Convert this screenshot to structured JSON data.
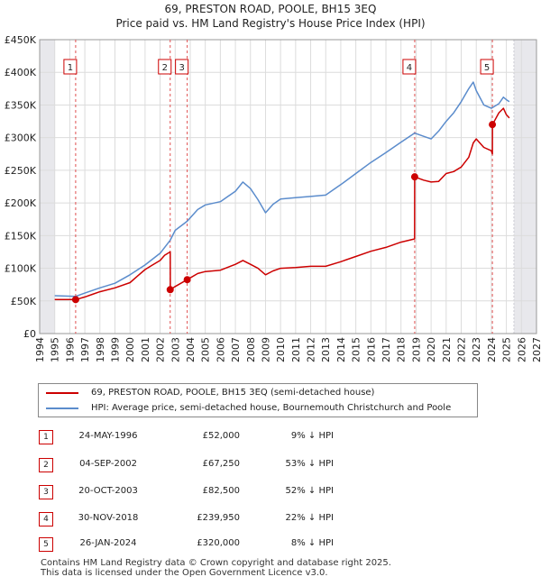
{
  "chart_data": {
    "type": "line",
    "title": "69, PRESTON ROAD, POOLE, BH15 3EQ",
    "subtitle": "Price paid vs. HM Land Registry's House Price Index (HPI)",
    "xlim": [
      1994,
      2027
    ],
    "ylim": [
      0,
      450000
    ],
    "y_ticks": [
      0,
      50000,
      100000,
      150000,
      200000,
      250000,
      300000,
      350000,
      400000,
      450000
    ],
    "y_tick_labels": [
      "£0",
      "£50K",
      "£100K",
      "£150K",
      "£200K",
      "£250K",
      "£300K",
      "£350K",
      "£400K",
      "£450K"
    ],
    "x_ticks": [
      1994,
      1995,
      1996,
      1997,
      1998,
      1999,
      2000,
      2001,
      2002,
      2003,
      2004,
      2005,
      2006,
      2007,
      2008,
      2009,
      2010,
      2011,
      2012,
      2013,
      2014,
      2015,
      2016,
      2017,
      2018,
      2019,
      2020,
      2021,
      2022,
      2023,
      2024,
      2025,
      2026,
      2027
    ],
    "grid": true,
    "data_range_x": [
      1995,
      2025.5
    ],
    "legend_placement": "below",
    "series": [
      {
        "name": "69, PRESTON ROAD, POOLE, BH15 3EQ (semi-detached house)",
        "color": "#cc0000",
        "x": [
          1995.0,
          1996.4,
          1997.0,
          1997.5,
          1998.0,
          1999.0,
          2000.0,
          2000.5,
          2001.0,
          2001.5,
          2002.0,
          2002.3,
          2002.67,
          2002.68,
          2003.0,
          2003.8,
          2004.5,
          2005.0,
          2006.0,
          2007.0,
          2007.5,
          2008.0,
          2008.5,
          2009.0,
          2009.5,
          2010.0,
          2011.0,
          2012.0,
          2013.0,
          2014.0,
          2015.0,
          2016.0,
          2017.0,
          2018.0,
          2018.9,
          2018.91,
          2019.5,
          2020.0,
          2020.5,
          2021.0,
          2021.5,
          2022.0,
          2022.5,
          2022.8,
          2023.0,
          2023.5,
          2024.0,
          2024.07,
          2024.08,
          2024.5,
          2024.8,
          2025.0,
          2025.2
        ],
        "y": [
          52000,
          52000,
          56000,
          60000,
          64000,
          70000,
          78000,
          88000,
          98000,
          105000,
          112000,
          120000,
          125000,
          67250,
          72000,
          82500,
          92000,
          95000,
          97000,
          106000,
          112000,
          106000,
          100000,
          90000,
          96000,
          100000,
          101000,
          103000,
          103000,
          110000,
          118000,
          126000,
          132000,
          140000,
          145000,
          239950,
          235000,
          232000,
          233000,
          245000,
          248000,
          255000,
          270000,
          292000,
          298000,
          285000,
          280000,
          275000,
          320000,
          338000,
          345000,
          335000,
          330000
        ]
      },
      {
        "name": "HPI: Average price, semi-detached house, Bournemouth Christchurch and Poole",
        "color": "#5b8ccc",
        "x": [
          1995.0,
          1996.4,
          1997.0,
          1998.0,
          1999.0,
          2000.0,
          2001.0,
          2002.0,
          2002.67,
          2003.0,
          2003.8,
          2004.5,
          2005.0,
          2006.0,
          2007.0,
          2007.5,
          2008.0,
          2008.5,
          2009.0,
          2009.5,
          2010.0,
          2011.0,
          2012.0,
          2013.0,
          2014.0,
          2015.0,
          2016.0,
          2017.0,
          2018.0,
          2018.9,
          2019.5,
          2020.0,
          2020.5,
          2021.0,
          2021.5,
          2022.0,
          2022.5,
          2022.8,
          2023.0,
          2023.5,
          2024.0,
          2024.5,
          2024.8,
          2025.0,
          2025.2
        ],
        "y": [
          58000,
          57000,
          62000,
          70000,
          77000,
          90000,
          105000,
          123000,
          143000,
          158000,
          172000,
          190000,
          197000,
          202000,
          218000,
          232000,
          222000,
          205000,
          185000,
          198000,
          206000,
          208000,
          210000,
          212000,
          228000,
          245000,
          262000,
          277000,
          293000,
          307000,
          302000,
          298000,
          310000,
          325000,
          338000,
          355000,
          375000,
          385000,
          372000,
          350000,
          345000,
          352000,
          362000,
          358000,
          355000
        ]
      }
    ],
    "transactions": [
      {
        "label": "1",
        "x": 1996.39,
        "price": 52000
      },
      {
        "label": "2",
        "x": 2002.67,
        "price": 67250
      },
      {
        "label": "3",
        "x": 2003.8,
        "price": 82500
      },
      {
        "label": "4",
        "x": 2018.91,
        "price": 239950
      },
      {
        "label": "5",
        "x": 2024.07,
        "price": 320000
      }
    ],
    "shade_before": 1995,
    "shade_after": 2025.5
  },
  "legend": {
    "red_label": "69, PRESTON ROAD, POOLE, BH15 3EQ (semi-detached house)",
    "blue_label": "HPI: Average price, semi-detached house, Bournemouth Christchurch and Poole"
  },
  "table": [
    {
      "num": "1",
      "date": "24-MAY-1996",
      "price": "£52,000",
      "hpi": "9% ↓ HPI"
    },
    {
      "num": "2",
      "date": "04-SEP-2002",
      "price": "£67,250",
      "hpi": "53% ↓ HPI"
    },
    {
      "num": "3",
      "date": "20-OCT-2003",
      "price": "£82,500",
      "hpi": "52% ↓ HPI"
    },
    {
      "num": "4",
      "date": "30-NOV-2018",
      "price": "£239,950",
      "hpi": "22% ↓ HPI"
    },
    {
      "num": "5",
      "date": "26-JAN-2024",
      "price": "£320,000",
      "hpi": "8% ↓ HPI"
    }
  ],
  "footer": {
    "line1": "Contains HM Land Registry data © Crown copyright and database right 2025.",
    "line2": "This data is licensed under the Open Government Licence v3.0."
  }
}
